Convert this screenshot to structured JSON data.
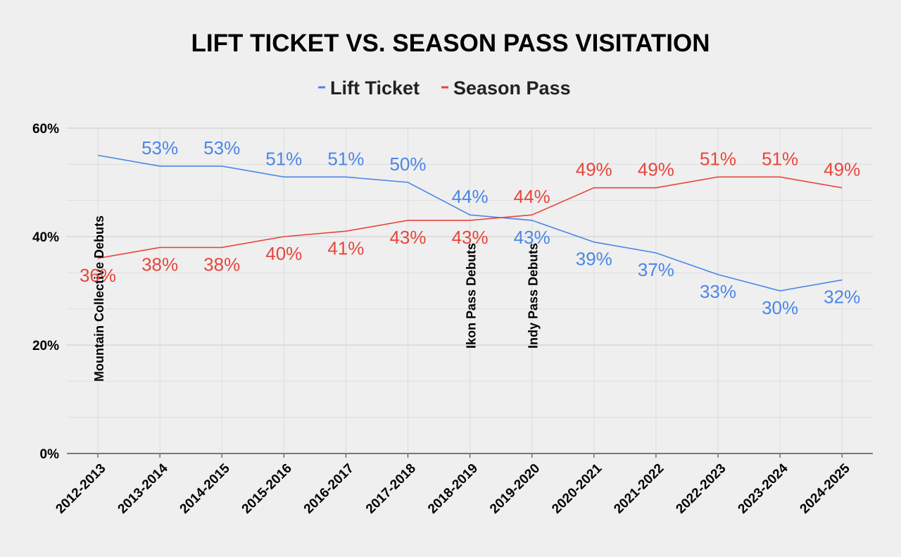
{
  "chart_data": {
    "type": "line",
    "title": "LIFT TICKET VS. SEASON PASS VISITATION",
    "xlabel": "",
    "ylabel": "",
    "ylim": [
      0,
      60
    ],
    "yticks": [
      "0%",
      "20%",
      "40%",
      "60%"
    ],
    "legend_position": "top-center",
    "categories": [
      "2012-2013",
      "2013-2014",
      "2014-2015",
      "2015-2016",
      "2016-2017",
      "2017-2018",
      "2018-2019",
      "2019-2020",
      "2020-2021",
      "2021-2022",
      "2022-2023",
      "2023-2024",
      "2024-2025"
    ],
    "series": [
      {
        "name": "Lift Ticket",
        "color": "#4a86e8",
        "values": [
          55,
          53,
          53,
          51,
          51,
          50,
          44,
          43,
          39,
          37,
          33,
          30,
          32
        ],
        "labels": [
          "",
          "53%",
          "53%",
          "51%",
          "51%",
          "50%",
          "44%",
          "43%",
          "39%",
          "37%",
          "33%",
          "30%",
          "32%"
        ]
      },
      {
        "name": "Season Pass",
        "color": "#e8453c",
        "values": [
          36,
          38,
          38,
          40,
          41,
          43,
          43,
          44,
          49,
          49,
          51,
          51,
          49
        ],
        "labels": [
          "36%",
          "38%",
          "38%",
          "40%",
          "41%",
          "43%",
          "43%",
          "44%",
          "49%",
          "49%",
          "51%",
          "51%",
          "49%"
        ]
      }
    ],
    "annotations": [
      {
        "category_index": 0,
        "text": "Mountain Collective Debuts"
      },
      {
        "category_index": 6,
        "text": "Ikon Pass Debuts"
      },
      {
        "category_index": 7,
        "text": "Indy Pass Debuts"
      }
    ]
  }
}
